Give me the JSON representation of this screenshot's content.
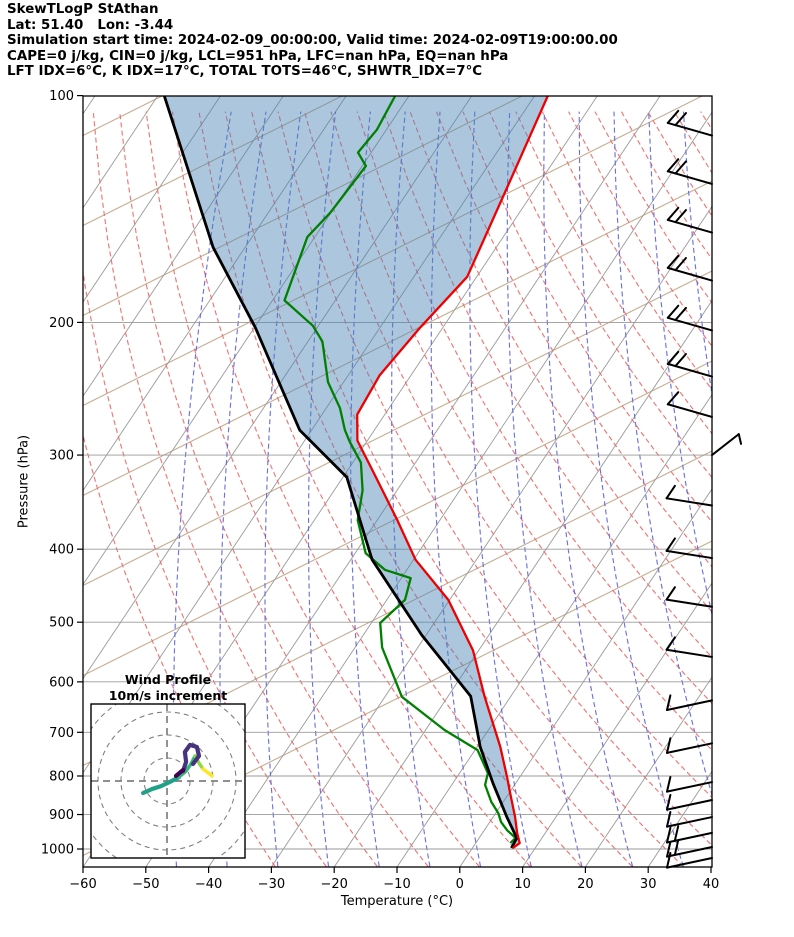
{
  "header": {
    "line1": "SkewTLogP StAthan",
    "line2": "Lat: 51.40   Lon: -3.44",
    "line3": "Simulation start time: 2024-02-09_00:00:00, Valid time: 2024-02-09T19:00:00.00",
    "line4": "CAPE=0 j/kg, CIN=0 j/kg, LCL=951 hPa, LFC=nan hPa, EQ=nan hPa",
    "line5": "LFT IDX=6°C, K IDX=17°C, TOTAL TOTS=46°C, SHWTR_IDX=7°C"
  },
  "axes": {
    "x_label": "Temperature (°C)",
    "y_label": "Pressure (hPa)",
    "x_ticks": [
      -60,
      -50,
      -40,
      -30,
      -20,
      -10,
      0,
      10,
      20,
      30,
      40
    ],
    "y_ticks": [
      100,
      200,
      300,
      400,
      500,
      600,
      700,
      800,
      900,
      1000
    ]
  },
  "chart_data": {
    "type": "skewt-logp-sounding",
    "station": "StAthan",
    "lat": 51.4,
    "lon": -3.44,
    "simulation_start_time": "2024-02-09_00:00:00",
    "valid_time": "2024-02-09T19:00:00.00",
    "indices": {
      "CAPE_j_kg": 0,
      "CIN_j_kg": 0,
      "LCL_hPa": 951,
      "LFC_hPa": "nan",
      "EQ_hPa": "nan",
      "LFT_IDX_C": 6,
      "K_IDX_C": 17,
      "TOTAL_TOTS_C": 46,
      "SHWTR_IDX_C": 7
    },
    "pressure_range_hPa": [
      100,
      1055
    ],
    "temperature_range_C": [
      -60,
      40
    ],
    "series": {
      "temperature_red": [
        [
          997,
          6.4
        ],
        [
          982,
          7.0
        ],
        [
          952,
          5.5
        ],
        [
          907,
          3.5
        ],
        [
          840,
          0.0
        ],
        [
          803,
          -2.0
        ],
        [
          732,
          -6.3
        ],
        [
          627,
          -14.2
        ],
        [
          545,
          -20.9
        ],
        [
          467,
          -30.2
        ],
        [
          413,
          -39.7
        ],
        [
          366,
          -46.8
        ],
        [
          314,
          -56.1
        ],
        [
          287,
          -61.6
        ],
        [
          265,
          -64.4
        ],
        [
          235,
          -65.0
        ],
        [
          203,
          -63.6
        ],
        [
          174,
          -61.5
        ],
        [
          134,
          -64.5
        ],
        [
          100,
          -67.9
        ]
      ],
      "parcel_black": [
        [
          997,
          6.2
        ],
        [
          967,
          6.0
        ],
        [
          907,
          2.2
        ],
        [
          818,
          -3.6
        ],
        [
          732,
          -9.5
        ],
        [
          627,
          -16.4
        ],
        [
          520,
          -30.7
        ],
        [
          413,
          -46.6
        ],
        [
          321,
          -59.4
        ],
        [
          278,
          -71.9
        ],
        [
          203,
          -89.9
        ],
        [
          159,
          -105.1
        ],
        [
          100,
          -129.0
        ]
      ],
      "dewpoint_green": [
        [
          982,
          5.5
        ],
        [
          967,
          5.8
        ],
        [
          944,
          3.6
        ],
        [
          921,
          1.8
        ],
        [
          896,
          0.4
        ],
        [
          866,
          -1.9
        ],
        [
          822,
          -4.7
        ],
        [
          793,
          -5.5
        ],
        [
          739,
          -9.6
        ],
        [
          695,
          -17.0
        ],
        [
          628,
          -27.3
        ],
        [
          540,
          -35.7
        ],
        [
          501,
          -38.6
        ],
        [
          467,
          -37.1
        ],
        [
          437,
          -38.5
        ],
        [
          426,
          -43.5
        ],
        [
          405,
          -48.3
        ],
        [
          366,
          -53.1
        ],
        [
          334,
          -55.5
        ],
        [
          307,
          -58.7
        ],
        [
          288,
          -62.7
        ],
        [
          278,
          -64.7
        ],
        [
          260,
          -67.8
        ],
        [
          240,
          -72.5
        ],
        [
          212,
          -77.7
        ],
        [
          202,
          -80.9
        ],
        [
          187,
          -88.1
        ],
        [
          154,
          -91.2
        ],
        [
          143,
          -90.1
        ],
        [
          124,
          -89.4
        ],
        [
          119,
          -92.1
        ],
        [
          111,
          -91.5
        ],
        [
          100,
          -92.2
        ]
      ]
    },
    "shaded_area": "negative buoyancy area between parcel profile and temperature"
  },
  "inset": {
    "title_line1": "Wind Profile",
    "title_line2": "10m/s increment",
    "ring_increment_ms": 10,
    "rings_ms": [
      10,
      20,
      30,
      40
    ],
    "trace_segments": [
      {
        "name": "low-level-teal",
        "color": "#1fa187",
        "width": 4.2,
        "uv": [
          [
            -10.4,
            -5.2
          ],
          [
            -6.5,
            -3.5
          ],
          [
            -2.6,
            -2.2
          ],
          [
            1.3,
            -0.4
          ],
          [
            5.2,
            1.7
          ]
        ]
      },
      {
        "name": "mid-green",
        "color": "#35b779",
        "width": 3.4,
        "uv": [
          [
            5.2,
            1.7
          ],
          [
            8.3,
            4.3
          ],
          [
            10.4,
            7.4
          ],
          [
            12.2,
            10.9
          ]
        ]
      },
      {
        "name": "mid-yellowgreen",
        "color": "#90d743",
        "width": 3.4,
        "uv": [
          [
            12.2,
            10.9
          ],
          [
            13.9,
            7.8
          ],
          [
            15.7,
            5.2
          ]
        ]
      },
      {
        "name": "upper-yellow",
        "color": "#fde725",
        "width": 3.4,
        "uv": [
          [
            15.7,
            5.2
          ],
          [
            19.6,
            2.2
          ]
        ]
      },
      {
        "name": "indigo-loop",
        "color": "#46327e",
        "width": 4.2,
        "uv": [
          [
            7.0,
            4.3
          ],
          [
            8.3,
            8.3
          ],
          [
            7.8,
            12.6
          ],
          [
            10.0,
            15.7
          ],
          [
            13.0,
            14.8
          ],
          [
            13.9,
            10.9
          ],
          [
            11.3,
            7.4
          ]
        ]
      },
      {
        "name": "dark-purple-stub",
        "color": "#440154",
        "width": 4.2,
        "uv": [
          [
            3.9,
            2.2
          ],
          [
            7.0,
            4.8
          ]
        ]
      }
    ]
  },
  "barbs": [
    {
      "p": 113,
      "dir": "wnw",
      "n": 2
    },
    {
      "p": 131,
      "dir": "wnw",
      "n": 2
    },
    {
      "p": 152,
      "dir": "wnw",
      "n": 2
    },
    {
      "p": 176,
      "dir": "wnw",
      "n": 2
    },
    {
      "p": 205,
      "dir": "wnw",
      "n": 2
    },
    {
      "p": 236,
      "dir": "wnw",
      "n": 2
    },
    {
      "p": 267,
      "dir": "wnw",
      "n": 1
    },
    {
      "p": 300,
      "dir": "ene",
      "n": 1
    },
    {
      "p": 350,
      "dir": "wsw",
      "n": 1
    },
    {
      "p": 411,
      "dir": "wsw",
      "n": 1
    },
    {
      "p": 477,
      "dir": "wsw",
      "n": 1
    },
    {
      "p": 556,
      "dir": "wsw",
      "n": 1
    },
    {
      "p": 635,
      "dir": "sw",
      "n": 1
    },
    {
      "p": 724,
      "dir": "sw",
      "n": 1
    },
    {
      "p": 815,
      "dir": "sw",
      "n": 1
    },
    {
      "p": 861,
      "dir": "sw",
      "n": 1
    },
    {
      "p": 907,
      "dir": "sw",
      "n": 1
    },
    {
      "p": 952,
      "dir": "sw",
      "n": 2
    },
    {
      "p": 994,
      "dir": "sw",
      "n": 2
    },
    {
      "p": 1028,
      "dir": "sw",
      "n": 1
    }
  ],
  "colors": {
    "temperature": "#ee0000",
    "parcel": "#000000",
    "dewpoint": "#008000",
    "shading": "rgba(70,130,180,0.45)",
    "dry_adiabat": "#ef6e6e",
    "moist_adiabat": "#5a64dd",
    "isotherm": "#9a9a9a",
    "tan_line": "#c9ad92",
    "grid": "#9a9a9a",
    "inset_dash": "#808080",
    "barb": "#000000"
  }
}
